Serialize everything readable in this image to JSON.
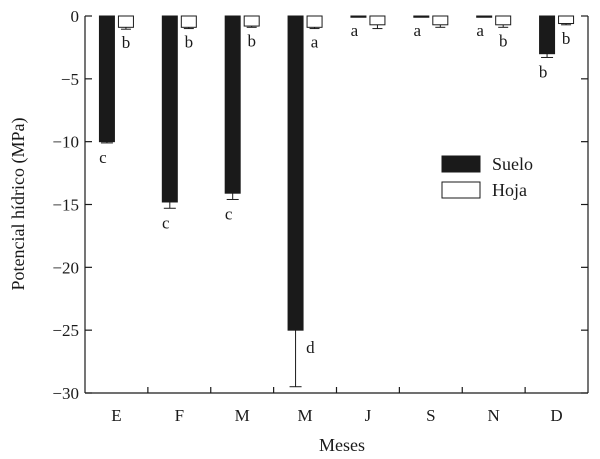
{
  "chart_data": {
    "type": "bar",
    "title": "",
    "xlabel": "Meses",
    "ylabel": "Potencial hídrico (MPa)",
    "ylim": [
      -30,
      0
    ],
    "yticks": [
      0,
      -5,
      -10,
      -15,
      -20,
      -25,
      -30
    ],
    "ytick_labels": [
      "0",
      "−5",
      "−10",
      "−15",
      "−20",
      "−25",
      "−30"
    ],
    "grid": false,
    "legend_position": "right",
    "categories": [
      "E",
      "F",
      "M",
      "M",
      "J",
      "S",
      "N",
      "D"
    ],
    "series": [
      {
        "name": "Suelo",
        "color": "#1a1a1a",
        "values": [
          -10,
          -14.8,
          -14.1,
          -25,
          -0.1,
          -0.1,
          -0.1,
          -3
        ],
        "errors": [
          0.1,
          0.5,
          0.5,
          4.5,
          0,
          0,
          0,
          0.3
        ],
        "letters": [
          "c",
          "c",
          "c",
          "d",
          "a",
          "a",
          "a",
          "b"
        ]
      },
      {
        "name": "Hoja",
        "color": "#ffffff",
        "values": [
          -0.9,
          -0.9,
          -0.8,
          -0.9,
          -0.7,
          -0.7,
          -0.7,
          -0.6
        ],
        "errors": [
          0.15,
          0.1,
          0.1,
          0.1,
          0.3,
          0.2,
          0.2,
          0.1
        ],
        "letters": [
          "b",
          "b",
          "b",
          "a",
          "",
          "",
          "b",
          "b"
        ]
      }
    ]
  }
}
